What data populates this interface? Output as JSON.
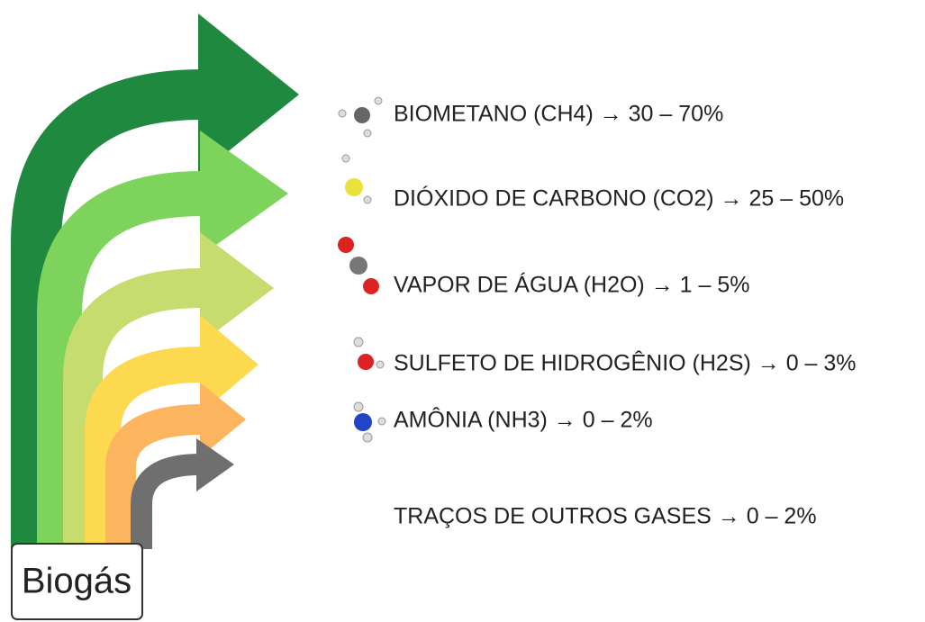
{
  "source_label": "Biogás",
  "items": [
    {
      "label": "BIOMETANO (CH4) → 30 – 70%"
    },
    {
      "label": "DIÓXIDO DE CARBONO (CO2) → 25 – 50%"
    },
    {
      "label": "VAPOR DE ÁGUA (H2O) →  1 – 5%"
    },
    {
      "label": "SULFETO DE HIDROGÊNIO (H2S) → 0 – 3%"
    },
    {
      "label": "AMÔNIA (NH3) → 0 – 2%"
    },
    {
      "label": "TRAÇOS DE OUTROS GASES → 0 – 2%"
    }
  ]
}
